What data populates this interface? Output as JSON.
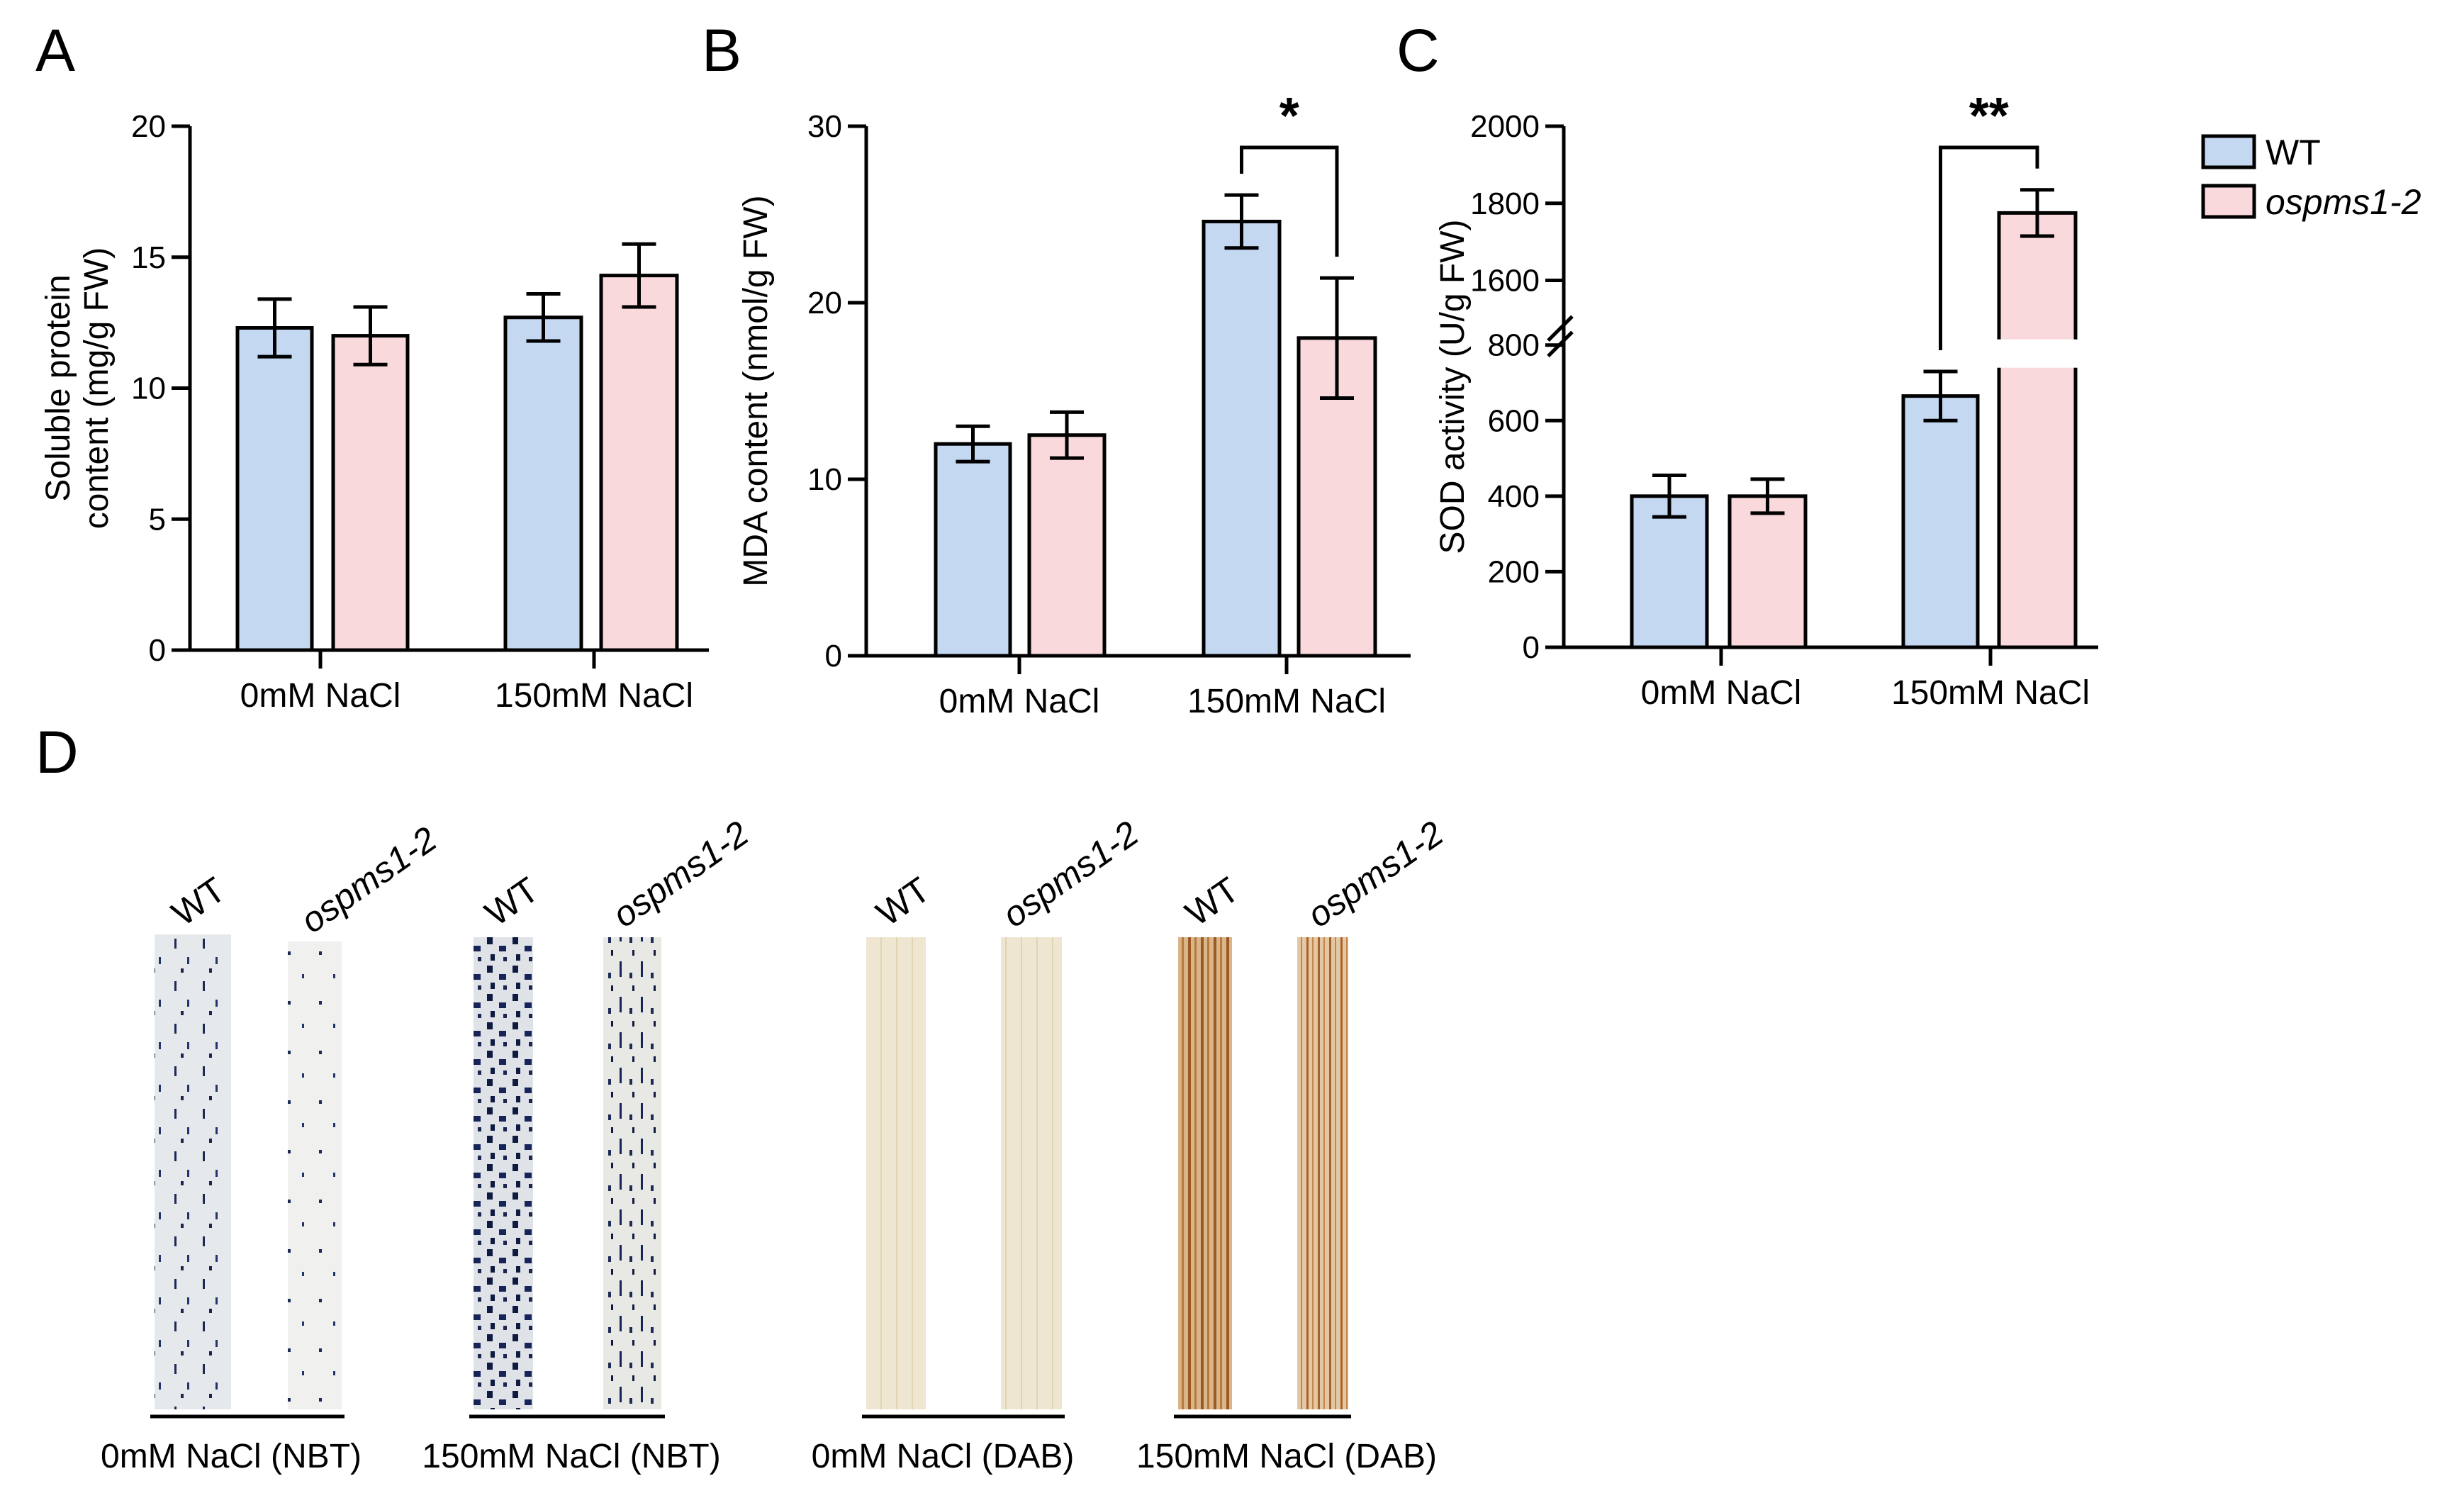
{
  "colors": {
    "wt": "#c5d8f2",
    "mutant": "#f9d9db",
    "stroke": "#000000"
  },
  "legend": {
    "wt": "WT",
    "mutant": "ospms1-2"
  },
  "chart_data": [
    {
      "panel": "A",
      "type": "bar",
      "categories": [
        "0mM NaCl",
        "150mM NaCl"
      ],
      "series": [
        {
          "name": "WT",
          "values": [
            12.3,
            12.7
          ],
          "errors": [
            1.1,
            0.9
          ]
        },
        {
          "name": "ospms1-2",
          "values": [
            12.0,
            14.3
          ],
          "errors": [
            1.1,
            1.2
          ]
        }
      ],
      "ylabel_lines": [
        "Soluble protein",
        "content (mg/g FW)"
      ],
      "ylim": [
        0,
        20
      ],
      "yticks": [
        0,
        5,
        10,
        15,
        20
      ],
      "significance": []
    },
    {
      "panel": "B",
      "type": "bar",
      "categories": [
        "0mM NaCl",
        "150mM NaCl"
      ],
      "series": [
        {
          "name": "WT",
          "values": [
            12.0,
            24.6
          ],
          "errors": [
            1.0,
            1.5
          ]
        },
        {
          "name": "ospms1-2",
          "values": [
            12.5,
            18.0
          ],
          "errors": [
            1.3,
            3.4
          ]
        }
      ],
      "ylabel_lines": [
        "MDA content (nmol/g FW)"
      ],
      "ylim": [
        0,
        30
      ],
      "yticks": [
        0,
        10,
        20,
        30
      ],
      "significance": [
        {
          "category": 1,
          "label": "*"
        }
      ]
    },
    {
      "panel": "C",
      "type": "bar",
      "categories": [
        "0mM NaCl",
        "150mM NaCl"
      ],
      "series": [
        {
          "name": "WT",
          "values": [
            400,
            665
          ],
          "errors": [
            55,
            65
          ]
        },
        {
          "name": "ospms1-2",
          "values": [
            400,
            1775
          ],
          "errors": [
            45,
            60
          ]
        }
      ],
      "ylabel_lines": [
        "SOD activity (U/g FW)"
      ],
      "ylim": [
        0,
        2000
      ],
      "axis_break": [
        800,
        1500
      ],
      "yticks": [
        0,
        200,
        400,
        600,
        800,
        1600,
        1800,
        2000
      ],
      "significance": [
        {
          "category": 1,
          "label": "**"
        }
      ]
    }
  ],
  "panel_d": {
    "letter": "D",
    "leaf_labels": [
      "WT",
      "ospms1-2",
      "WT",
      "ospms1-2",
      "WT",
      "ospms1-2",
      "WT",
      "ospms1-2"
    ],
    "group_captions": [
      "0mM NaCl (NBT)",
      "150mM NaCl (NBT)",
      "0mM NaCl (DAB)",
      "150mM NaCl (DAB)"
    ]
  }
}
